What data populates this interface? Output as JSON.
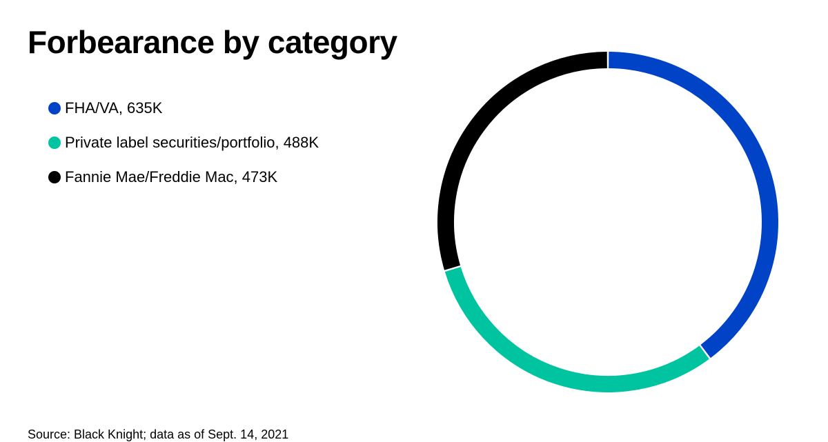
{
  "chart_data": {
    "type": "pie",
    "title": "Forbearance by category",
    "donut": true,
    "slices": [
      {
        "label": "FHA/VA",
        "value": 635,
        "display": "635K",
        "color": "#0043c7"
      },
      {
        "label": "Private label securities/portfolio",
        "value": 488,
        "display": "488K",
        "color": "#00c3a0"
      },
      {
        "label": "Fannie Mae/Freddie Mac",
        "value": 473,
        "display": "473K",
        "color": "#000000"
      }
    ],
    "legend_position": "top-left"
  },
  "source": "Source: Black Knight; data as of Sept. 14, 2021"
}
